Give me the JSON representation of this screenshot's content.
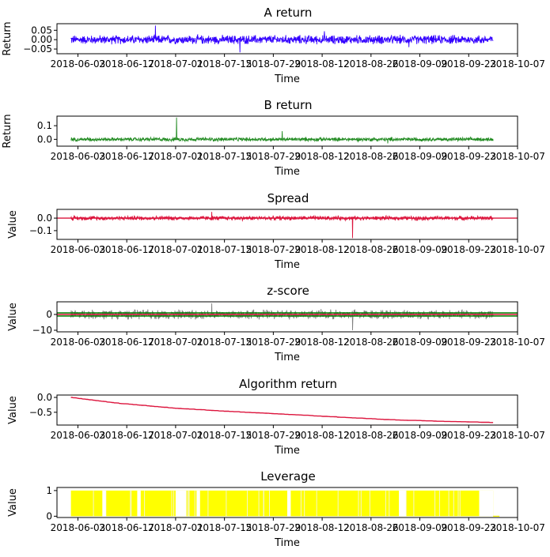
{
  "x_ticks": [
    "2018-06-03",
    "2018-06-17",
    "2018-07-01",
    "2018-07-15",
    "2018-07-29",
    "2018-08-12",
    "2018-08-26",
    "2018-09-09",
    "2018-09-23",
    "2018-10-07"
  ],
  "chart_data": [
    {
      "type": "line",
      "title": "A return",
      "xlabel": "Time",
      "ylabel": "Return",
      "color": "#3300ff",
      "xlim": [
        "2018-05-28",
        "2018-10-07"
      ],
      "ylim": [
        -0.075,
        0.085
      ],
      "yticks": [
        "0.05",
        "0.00",
        "−0.05"
      ],
      "ytick_values": [
        0.05,
        0.0,
        -0.05
      ],
      "series": [
        {
          "x_start": "2018-06-01",
          "x_end": "2018-09-30",
          "kind": "noisy_return",
          "noise_amplitude": 0.02,
          "values": [
            0.075,
            -0.068,
            0.045,
            -0.04
          ]
        }
      ]
    },
    {
      "type": "line",
      "title": "B return",
      "xlabel": "Time",
      "ylabel": "Return",
      "color": "#228b22",
      "xlim": [
        "2018-05-28",
        "2018-10-07"
      ],
      "ylim": [
        -0.05,
        0.17
      ],
      "yticks": [
        "0.1",
        "0.0"
      ],
      "ytick_values": [
        0.1,
        0.0
      ],
      "series": [
        {
          "x_start": "2018-06-01",
          "x_end": "2018-09-30",
          "kind": "noisy_return",
          "noise_amplitude": 0.012,
          "values": [
            0.16,
            0.06,
            -0.03
          ]
        }
      ]
    },
    {
      "type": "line",
      "title": "Spread",
      "xlabel": "Time",
      "ylabel": "Value",
      "color": "#dc143c",
      "xlim": [
        "2018-05-28",
        "2018-10-07"
      ],
      "ylim": [
        -0.17,
        0.07
      ],
      "yticks": [
        "0.0",
        "−0.1"
      ],
      "ytick_values": [
        0.0,
        -0.1
      ],
      "hlines": [
        {
          "y": 0.0,
          "color": "#dc143c"
        }
      ],
      "series": [
        {
          "x_start": "2018-06-01",
          "x_end": "2018-09-30",
          "kind": "noisy_return",
          "noise_amplitude": 0.015,
          "values": [
            0.05,
            -0.16
          ]
        }
      ]
    },
    {
      "type": "line",
      "title": "z-score",
      "xlabel": "Time",
      "ylabel": "Value",
      "color": "#808080",
      "xlim": [
        "2018-05-28",
        "2018-10-07"
      ],
      "ylim": [
        -11,
        8
      ],
      "yticks": [
        "0",
        "−10"
      ],
      "ytick_values": [
        0,
        -10
      ],
      "hlines": [
        {
          "y": 1.0,
          "color": "#008000"
        },
        {
          "y": -1.0,
          "color": "#008000"
        },
        {
          "y": 0.0,
          "color": "#dc143c"
        }
      ],
      "series": [
        {
          "x_start": "2018-06-01",
          "x_end": "2018-09-30",
          "kind": "noisy_return",
          "noise_amplitude": 2.5,
          "values": [
            7,
            -10
          ]
        }
      ]
    },
    {
      "type": "line",
      "title": "Algorithm return",
      "xlabel": "Time",
      "ylabel": "Value",
      "color": "#dc143c",
      "xlim": [
        "2018-05-28",
        "2018-10-07"
      ],
      "ylim": [
        -0.93,
        0.08
      ],
      "yticks": [
        "0.0",
        "−0.5"
      ],
      "ytick_values": [
        0.0,
        -0.5
      ],
      "series": [
        {
          "kind": "cumulative",
          "x": [
            "2018-06-01",
            "2018-06-15",
            "2018-07-01",
            "2018-07-15",
            "2018-08-01",
            "2018-08-15",
            "2018-09-01",
            "2018-09-15",
            "2018-09-30"
          ],
          "values": [
            0.0,
            -0.2,
            -0.36,
            -0.46,
            -0.56,
            -0.65,
            -0.75,
            -0.8,
            -0.84
          ]
        }
      ]
    },
    {
      "type": "bar",
      "title": "Leverage",
      "xlabel": "Time",
      "ylabel": "Value",
      "color": "#ffff00",
      "xlim": [
        "2018-05-28",
        "2018-10-07"
      ],
      "ylim": [
        -0.05,
        1.12
      ],
      "yticks": [
        "1",
        "0"
      ],
      "ytick_values": [
        1,
        0
      ],
      "series": [
        {
          "kind": "binary_fill",
          "x_start": "2018-06-01",
          "x_end": "2018-09-30",
          "values": [
            0,
            1
          ],
          "gaps": [
            [
              "2018-06-10",
              "2018-06-11"
            ],
            [
              "2018-06-20",
              "2018-06-21"
            ],
            [
              "2018-07-01",
              "2018-07-04"
            ],
            [
              "2018-07-07",
              "2018-07-08"
            ],
            [
              "2018-08-02",
              "2018-08-03"
            ],
            [
              "2018-09-03",
              "2018-09-05"
            ],
            [
              "2018-09-26",
              "2018-09-30"
            ]
          ]
        }
      ]
    }
  ]
}
